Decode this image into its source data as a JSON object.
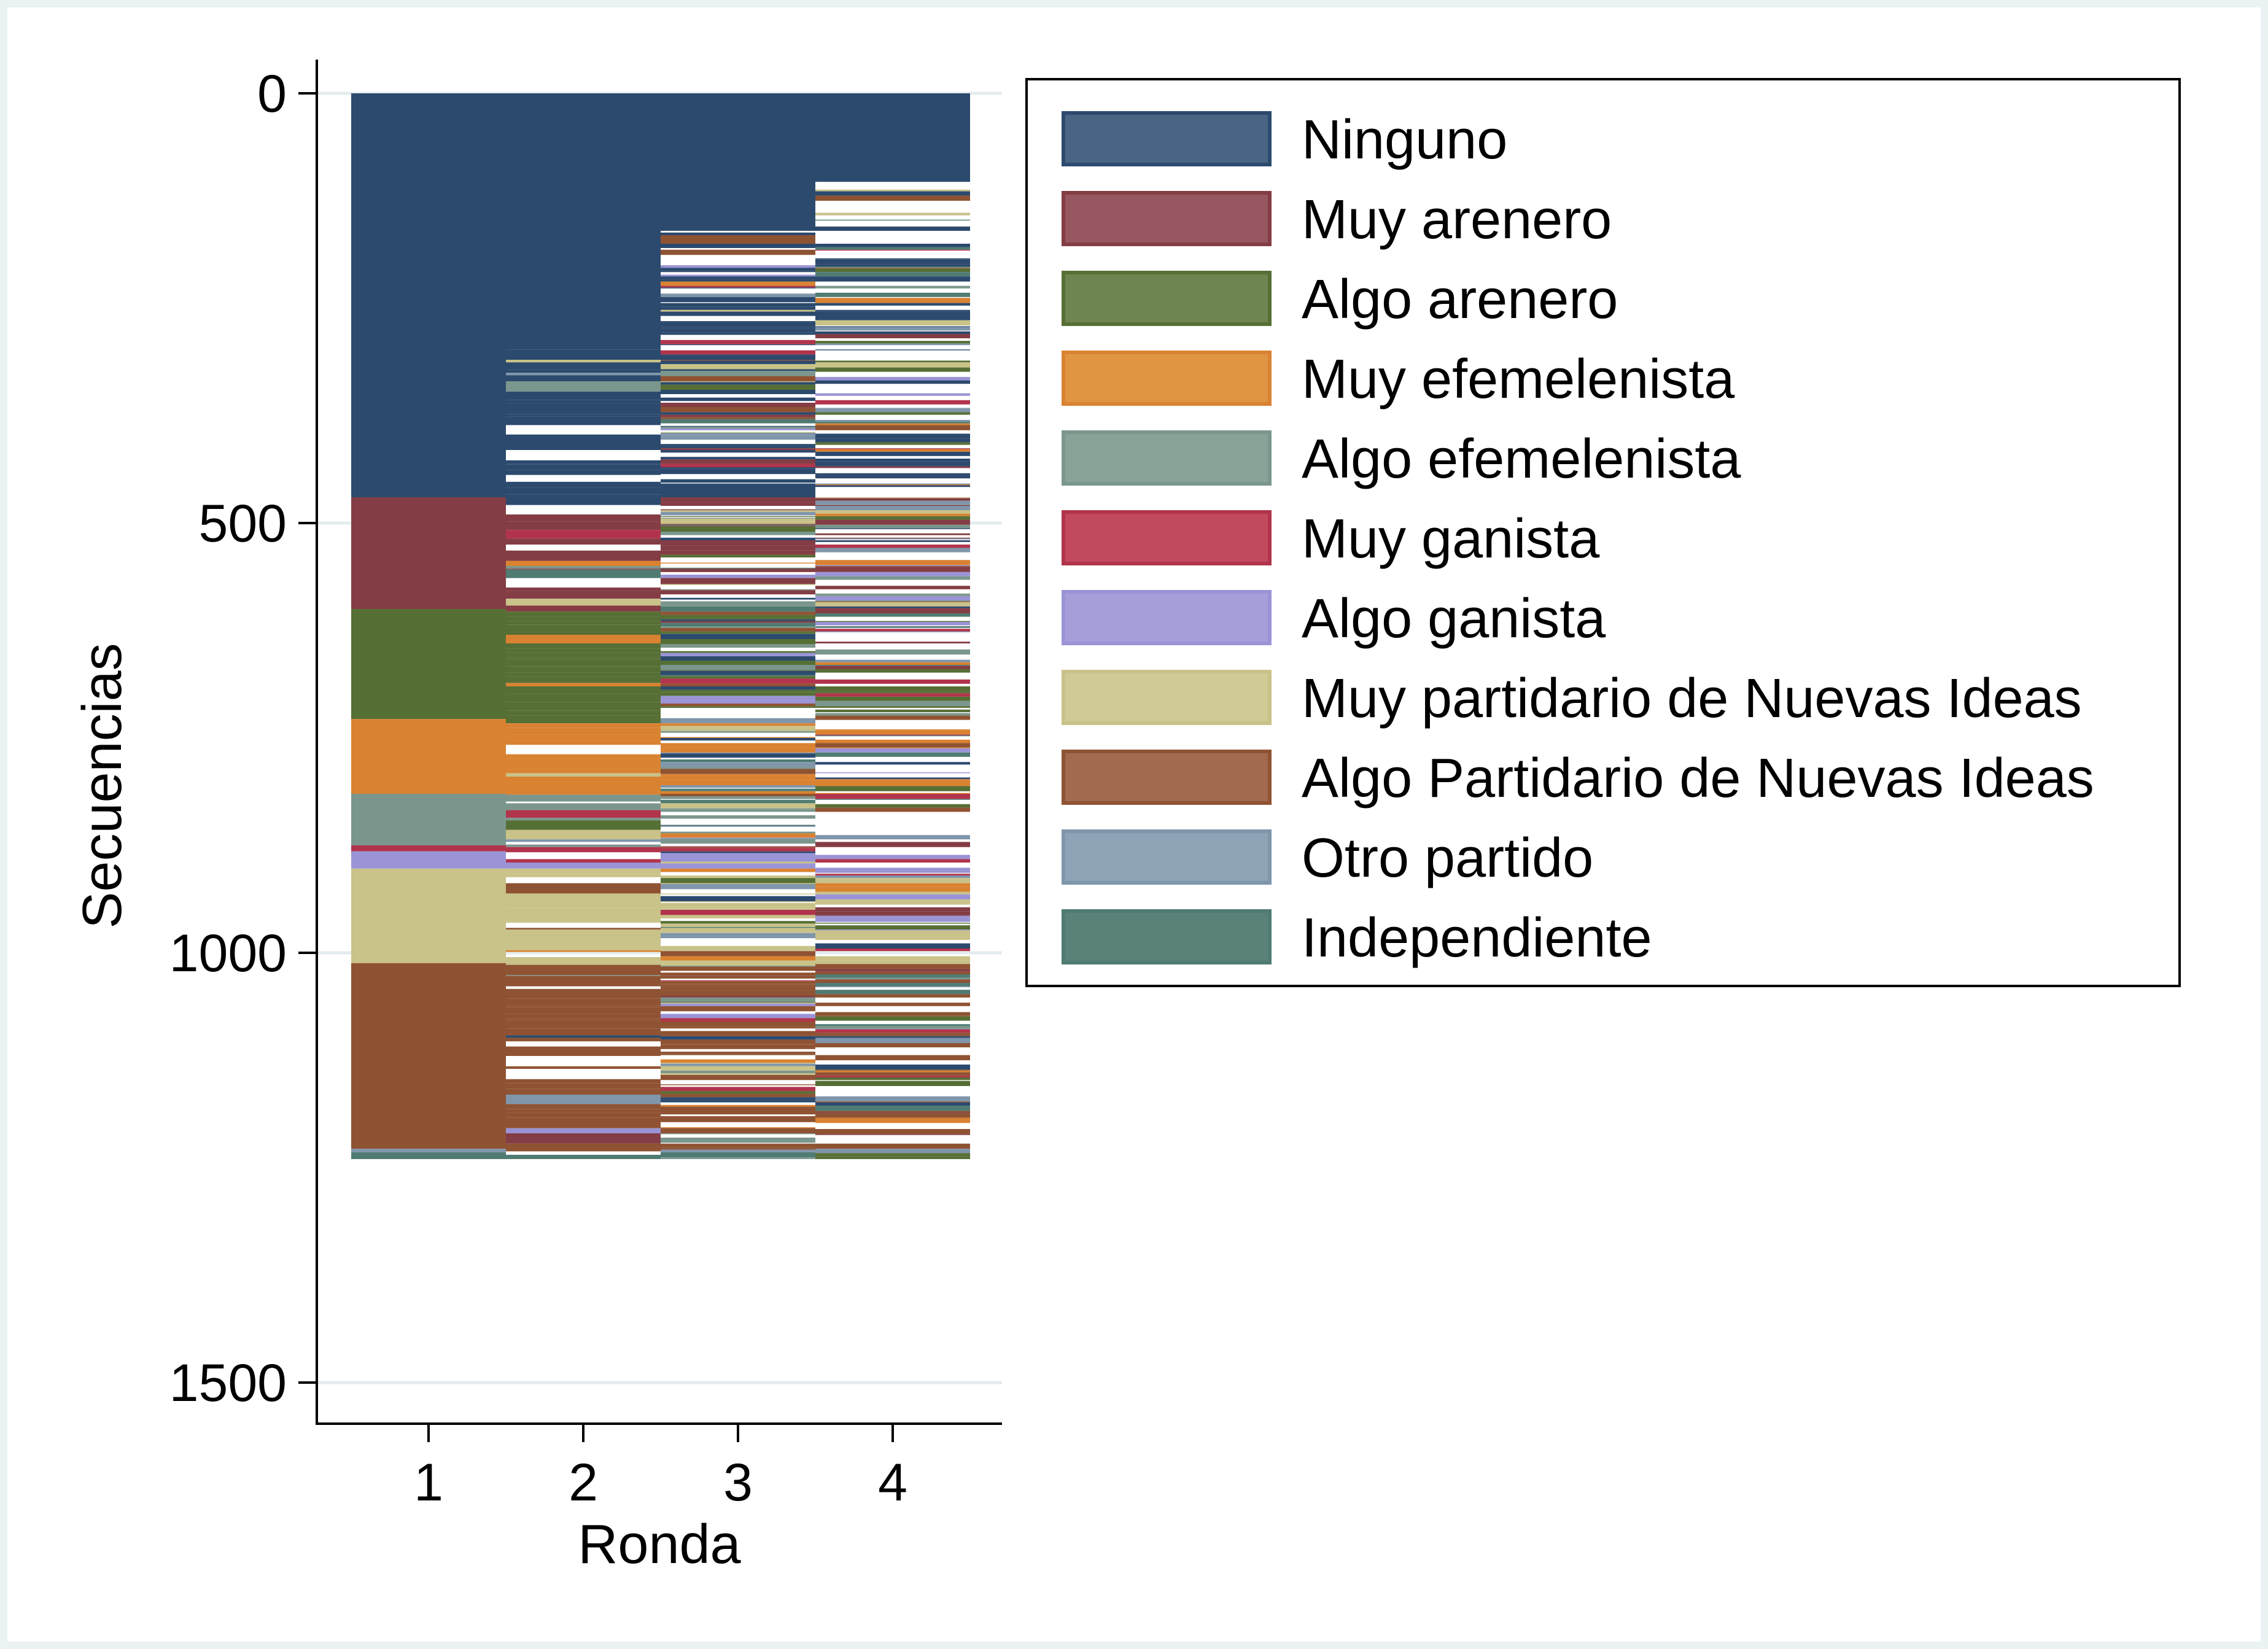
{
  "chart_data": {
    "type": "sequence-index",
    "xlabel": "Ronda",
    "ylabel": "Secuencias",
    "x_ticks": [
      "1",
      "2",
      "3",
      "4"
    ],
    "y_ticks": [
      "0",
      "500",
      "1000",
      "1500"
    ],
    "y_tick_values": [
      0,
      500,
      1000,
      1500
    ],
    "ylim": [
      0,
      1500
    ],
    "y_reversed": true,
    "grid": true,
    "legend_position": "right",
    "total_sequences": 1240,
    "states": [
      {
        "name": "Ninguno",
        "color": "#2c4a6e",
        "legend_color": "#4a6483"
      },
      {
        "name": "Muy arenero",
        "color": "#843d44",
        "legend_color": "#965760"
      },
      {
        "name": "Algo arenero",
        "color": "#566f35",
        "legend_color": "#6e8551"
      },
      {
        "name": "Muy efemelenista",
        "color": "#d98231",
        "legend_color": "#e09544"
      },
      {
        "name": "Algo efemelenista",
        "color": "#7b978d",
        "legend_color": "#8aa399"
      },
      {
        "name": "Muy ganista",
        "color": "#b1344c",
        "legend_color": "#c24a5e"
      },
      {
        "name": "Algo ganista",
        "color": "#9a94d6",
        "legend_color": "#a49ed9"
      },
      {
        "name": "Muy partidario de Nuevas Ideas",
        "color": "#c9c289",
        "legend_color": "#d0ca96"
      },
      {
        "name": "Algo Partidario de Nuevas Ideas",
        "color": "#8f5333",
        "legend_color": "#a26a4f"
      },
      {
        "name": "Otro partido",
        "color": "#7f96ab",
        "legend_color": "#8ea3b6"
      },
      {
        "name": "Independiente",
        "color": "#4f7b73",
        "legend_color": "#5a8279"
      }
    ],
    "round1_segments": [
      {
        "state": "Ninguno",
        "from": 0,
        "to": 470
      },
      {
        "state": "Muy arenero",
        "from": 470,
        "to": 600
      },
      {
        "state": "Algo arenero",
        "from": 600,
        "to": 728
      },
      {
        "state": "Muy efemelenista",
        "from": 728,
        "to": 815
      },
      {
        "state": "Algo efemelenista",
        "from": 815,
        "to": 875
      },
      {
        "state": "Muy ganista",
        "from": 875,
        "to": 882
      },
      {
        "state": "Algo ganista",
        "from": 882,
        "to": 902
      },
      {
        "state": "Muy partidario de Nuevas Ideas",
        "from": 902,
        "to": 1012
      },
      {
        "state": "Algo Partidario de Nuevas Ideas",
        "from": 1012,
        "to": 1228
      },
      {
        "state": "Otro partido",
        "from": 1228,
        "to": 1232
      },
      {
        "state": "Independiente",
        "from": 1232,
        "to": 1240
      }
    ]
  }
}
